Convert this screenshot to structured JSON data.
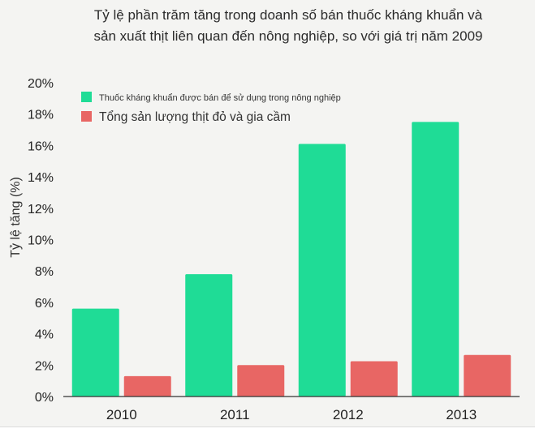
{
  "chart_data": {
    "type": "bar",
    "title_lines": [
      "Tỷ lệ phần trăm tăng trong doanh số bán thuốc kháng khuẩn và",
      "sản xuất thịt liên quan đến nông nghiệp, so với giá trị năm 2009"
    ],
    "ylabel": "Tỷ lệ tăng (%)",
    "xlabel": "",
    "ylim": [
      0,
      20
    ],
    "y_ticks": [
      "0%",
      "2%",
      "4%",
      "6%",
      "8%",
      "10%",
      "12%",
      "14%",
      "16%",
      "18%",
      "20%"
    ],
    "y_tick_values": [
      0,
      2,
      4,
      6,
      8,
      10,
      12,
      14,
      16,
      18,
      20
    ],
    "categories": [
      "2010",
      "2011",
      "2012",
      "2013"
    ],
    "series": [
      {
        "name": "Thuốc kháng khuẩn được bán để sử dụng trong nông nghiệp",
        "values": [
          5.6,
          7.8,
          16.1,
          17.5
        ],
        "color": "#1fdc96"
      },
      {
        "name": "Tổng sản lượng thịt đỏ và gia cầm",
        "values": [
          1.3,
          2.0,
          2.25,
          2.65
        ],
        "color": "#e86664"
      }
    ],
    "grid": false,
    "legend_position": "top-left"
  }
}
